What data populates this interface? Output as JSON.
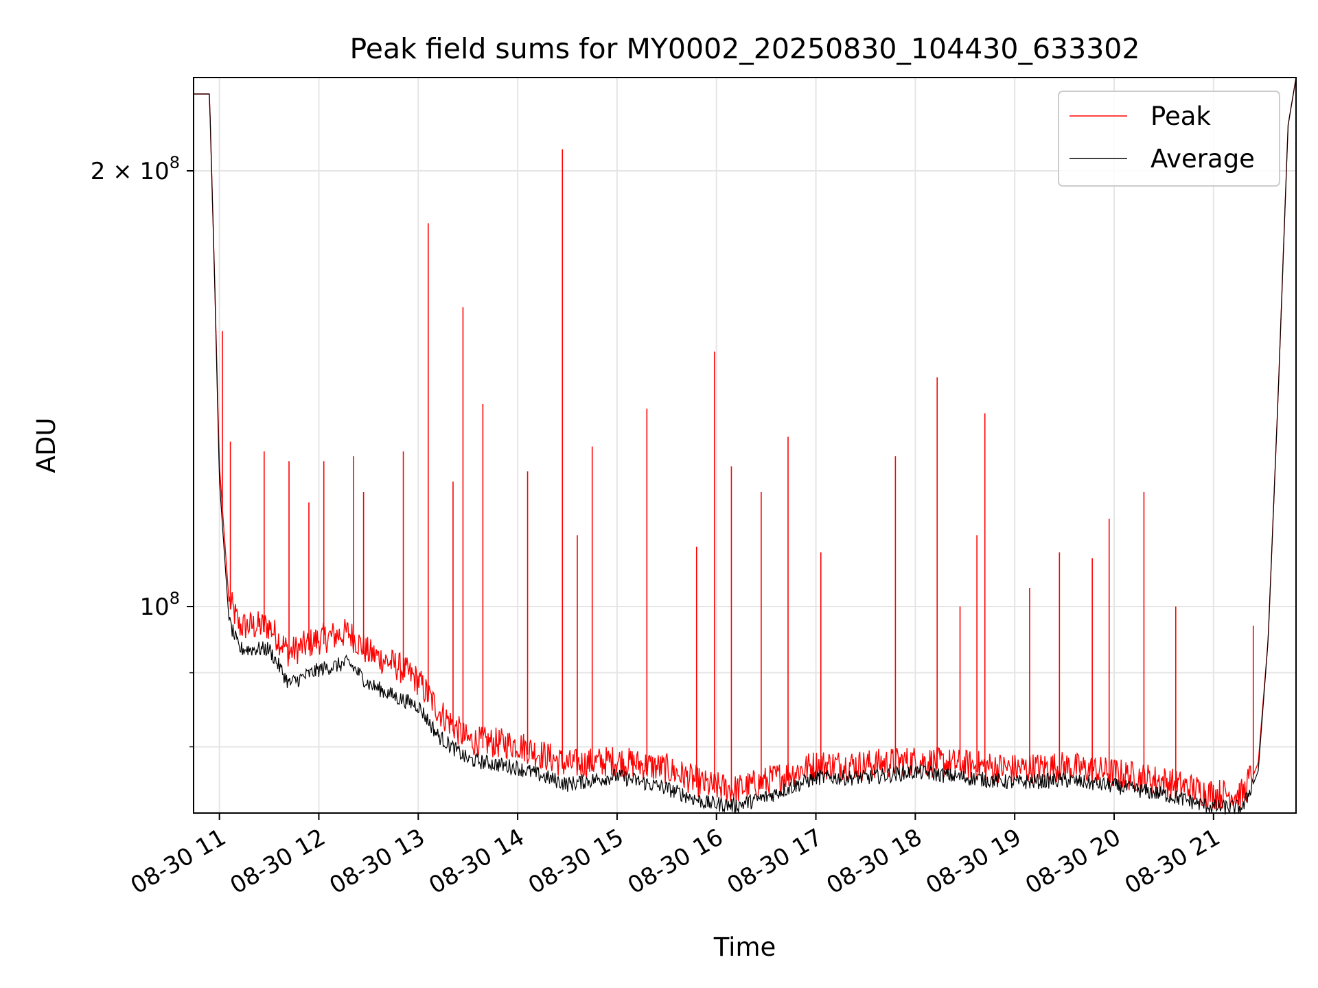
{
  "chart_data": {
    "type": "line",
    "title": "Peak field sums for MY0002_20250830_104430_633302",
    "xlabel": "Time",
    "ylabel": "ADU",
    "yscale": "log",
    "ylim": [
      72000000,
      232000000
    ],
    "xlim_hours": [
      10.74,
      21.83
    ],
    "x_ticks": [
      {
        "hour": 11,
        "label": "08-30 11"
      },
      {
        "hour": 12,
        "label": "08-30 12"
      },
      {
        "hour": 13,
        "label": "08-30 13"
      },
      {
        "hour": 14,
        "label": "08-30 14"
      },
      {
        "hour": 15,
        "label": "08-30 15"
      },
      {
        "hour": 16,
        "label": "08-30 16"
      },
      {
        "hour": 17,
        "label": "08-30 17"
      },
      {
        "hour": 18,
        "label": "08-30 18"
      },
      {
        "hour": 19,
        "label": "08-30 19"
      },
      {
        "hour": 20,
        "label": "08-30 20"
      },
      {
        "hour": 21,
        "label": "08-30 21"
      }
    ],
    "y_major_ticks": [
      {
        "value": 100000000,
        "base": "10",
        "exp": "8"
      },
      {
        "value": 200000000,
        "base": "2 × 10",
        "exp": "8"
      }
    ],
    "y_minor_ticks": [
      80000000,
      90000000
    ],
    "grid": true,
    "legend_position": "upper right",
    "series": [
      {
        "name": "Peak",
        "color": "#ff0000",
        "baseline": [
          [
            10.74,
            226000000
          ],
          [
            10.9,
            226000000
          ],
          [
            10.95,
            170000000
          ],
          [
            11.0,
            125000000
          ],
          [
            11.1,
            100000000
          ],
          [
            11.2,
            96000000
          ],
          [
            11.5,
            96000000
          ],
          [
            11.7,
            92000000
          ],
          [
            12.0,
            94000000
          ],
          [
            12.3,
            95000000
          ],
          [
            12.5,
            92000000
          ],
          [
            12.8,
            90000000
          ],
          [
            13.0,
            88000000
          ],
          [
            13.2,
            84000000
          ],
          [
            13.5,
            80000000
          ],
          [
            14.0,
            79500000
          ],
          [
            14.5,
            77000000
          ],
          [
            15.0,
            77500000
          ],
          [
            15.5,
            76500000
          ],
          [
            15.9,
            74500000
          ],
          [
            16.2,
            74000000
          ],
          [
            16.5,
            75000000
          ],
          [
            17.0,
            77000000
          ],
          [
            17.5,
            77000000
          ],
          [
            18.0,
            77500000
          ],
          [
            18.5,
            77000000
          ],
          [
            19.0,
            76500000
          ],
          [
            19.5,
            76800000
          ],
          [
            20.0,
            76000000
          ],
          [
            20.5,
            75000000
          ],
          [
            21.0,
            73500000
          ],
          [
            21.3,
            73500000
          ],
          [
            21.45,
            78000000
          ],
          [
            21.55,
            95000000
          ],
          [
            21.65,
            140000000
          ],
          [
            21.75,
            215000000
          ],
          [
            21.83,
            232000000
          ]
        ],
        "spikes": [
          [
            11.03,
            155000000
          ],
          [
            11.11,
            130000000
          ],
          [
            11.45,
            128000000
          ],
          [
            11.7,
            126000000
          ],
          [
            11.9,
            118000000
          ],
          [
            12.05,
            126000000
          ],
          [
            12.35,
            127000000
          ],
          [
            12.45,
            120000000
          ],
          [
            12.85,
            128000000
          ],
          [
            13.1,
            184000000
          ],
          [
            13.35,
            122000000
          ],
          [
            13.45,
            161000000
          ],
          [
            13.65,
            138000000
          ],
          [
            14.1,
            124000000
          ],
          [
            14.45,
            207000000
          ],
          [
            14.6,
            112000000
          ],
          [
            14.75,
            129000000
          ],
          [
            15.3,
            137000000
          ],
          [
            15.8,
            110000000
          ],
          [
            15.98,
            150000000
          ],
          [
            16.15,
            125000000
          ],
          [
            16.45,
            120000000
          ],
          [
            16.72,
            131000000
          ],
          [
            17.05,
            109000000
          ],
          [
            17.8,
            127000000
          ],
          [
            18.22,
            144000000
          ],
          [
            18.45,
            100000000
          ],
          [
            18.62,
            112000000
          ],
          [
            18.7,
            136000000
          ],
          [
            19.15,
            103000000
          ],
          [
            19.45,
            109000000
          ],
          [
            19.78,
            108000000
          ],
          [
            19.95,
            115000000
          ],
          [
            20.3,
            120000000
          ],
          [
            20.62,
            100000000
          ],
          [
            21.4,
            97000000
          ]
        ]
      },
      {
        "name": "Average",
        "color": "#000000",
        "baseline": [
          [
            10.74,
            226000000
          ],
          [
            10.9,
            226000000
          ],
          [
            10.95,
            170000000
          ],
          [
            11.0,
            122000000
          ],
          [
            11.1,
            97000000
          ],
          [
            11.2,
            93000000
          ],
          [
            11.5,
            93000000
          ],
          [
            11.7,
            88000000
          ],
          [
            12.0,
            90000000
          ],
          [
            12.3,
            91000000
          ],
          [
            12.5,
            88000000
          ],
          [
            12.8,
            86000000
          ],
          [
            13.0,
            85000000
          ],
          [
            13.2,
            81000000
          ],
          [
            13.5,
            78000000
          ],
          [
            14.0,
            77000000
          ],
          [
            14.5,
            75000000
          ],
          [
            15.0,
            76000000
          ],
          [
            15.5,
            74500000
          ],
          [
            15.9,
            72800000
          ],
          [
            16.2,
            72500000
          ],
          [
            16.5,
            73500000
          ],
          [
            17.0,
            75800000
          ],
          [
            17.5,
            75800000
          ],
          [
            18.0,
            76500000
          ],
          [
            18.5,
            75800000
          ],
          [
            19.0,
            75200000
          ],
          [
            19.5,
            75500000
          ],
          [
            20.0,
            74800000
          ],
          [
            20.5,
            73800000
          ],
          [
            21.0,
            72300000
          ],
          [
            21.3,
            72300000
          ],
          [
            21.45,
            77000000
          ],
          [
            21.55,
            95000000
          ],
          [
            21.65,
            140000000
          ],
          [
            21.75,
            215000000
          ],
          [
            21.83,
            232000000
          ]
        ]
      }
    ]
  }
}
